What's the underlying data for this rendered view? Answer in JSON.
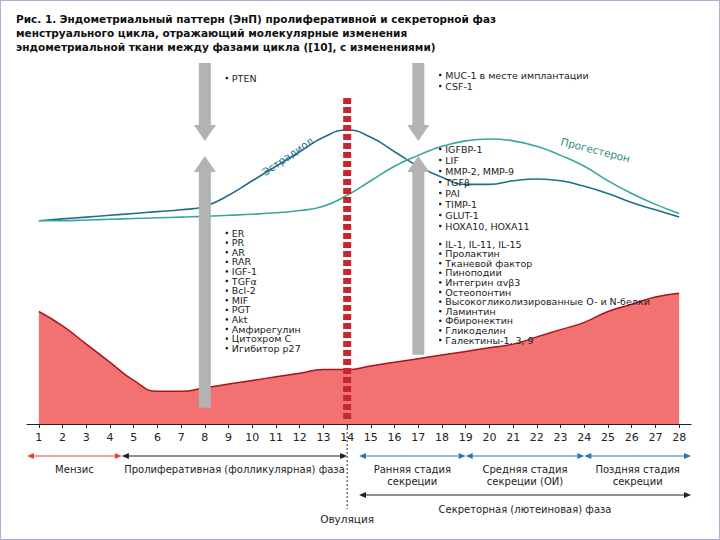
{
  "chart_data": {
    "type": "line",
    "title": "Рис. 1. Эндометриальный паттерн (ЭнП) пролиферативной и секреторной фаз менструального цикла, отражающий молекулярные изменения эндометриальной ткани между фазами цикла ([10], с изменениями)",
    "x": [
      1,
      2,
      3,
      4,
      5,
      6,
      7,
      8,
      9,
      10,
      11,
      12,
      13,
      14,
      15,
      16,
      17,
      18,
      19,
      20,
      21,
      22,
      23,
      24,
      25,
      26,
      27,
      28
    ],
    "xlim": [
      0.5,
      28.5
    ],
    "xticks": [
      1,
      2,
      3,
      4,
      5,
      6,
      7,
      8,
      9,
      10,
      11,
      12,
      13,
      14,
      15,
      16,
      17,
      18,
      19,
      20,
      21,
      22,
      23,
      24,
      25,
      26,
      27,
      28
    ],
    "ylim": [
      0,
      100
    ],
    "tick_labels": "x",
    "grid": false,
    "series": [
      {
        "name": "Эстрадиол",
        "color": "#1f6f8b",
        "values": [
          56,
          56.5,
          57,
          57.5,
          58,
          58.5,
          59,
          60,
          63,
          67,
          71,
          75,
          79,
          81,
          79,
          75,
          71,
          68,
          66,
          66,
          67,
          67.5,
          67,
          65.5,
          63.5,
          61,
          59,
          57
        ]
      },
      {
        "name": "Прогестерон",
        "color": "#3aa79a",
        "values": [
          56,
          56,
          56.2,
          56.4,
          56.6,
          56.8,
          57,
          57.2,
          57.5,
          57.8,
          58.2,
          58.8,
          60,
          63,
          67,
          71,
          74,
          76.5,
          78,
          78.5,
          78,
          76.5,
          74,
          71,
          67,
          63.5,
          60.5,
          58
        ]
      },
      {
        "type": "area",
        "color": "#f27272",
        "values": [
          31,
          27,
          22,
          17,
          12,
          9,
          9,
          10,
          11,
          12,
          13,
          14,
          15,
          15,
          16,
          17,
          18,
          19,
          20,
          21,
          22,
          24,
          26,
          28,
          31,
          33,
          35,
          36
        ]
      }
    ],
    "annotations": [
      {
        "x": 8,
        "groups": [
          [
            "PTEN"
          ],
          [
            "ER",
            "PR",
            "AR",
            "RAR",
            "IGF-1",
            "TGFα",
            "Bcl-2",
            "MIF",
            "PGT",
            "Akt",
            "Амфирегулин",
            "Цитохром С",
            "Игибитор p27"
          ]
        ]
      },
      {
        "x": 17,
        "groups": [
          [
            "MUC-1 в месте имплантации",
            "CSF-1"
          ],
          [
            "IGFBP-1",
            "LIF",
            "MMP-2, MMP-9",
            "TGFβ",
            "PAI",
            "TIMP-1",
            "GLUT-1",
            "HOXA10, HOXA11"
          ],
          [
            "IL-1, IL-11, IL-15",
            "Пролактин",
            "Тканевой фактор",
            "Пиноподии",
            "Интегрин αvβ3",
            "Остеопонтин",
            "Высокогликолизированные O- и N-белки",
            "Ламинтин",
            "Фбиронектин",
            "Гликоделин",
            "Галектины-1, 3, 9"
          ]
        ]
      }
    ],
    "ovulation": {
      "x": 14,
      "label": "Овуляция"
    },
    "phases": [
      {
        "label": "Мензис",
        "start": 0.5,
        "end": 4.5,
        "color": "#e8463c"
      },
      {
        "label": "Пролиферативная (фолликулярная) фаза",
        "start": 4.5,
        "end": 14,
        "color": "#222222"
      },
      {
        "label": "Ранняя стадия\nсекреции",
        "start": 14.5,
        "end": 19,
        "color": "#2a7ab0"
      },
      {
        "label": "Средняя стадия\nсекреции (ОИ)",
        "start": 19,
        "end": 24,
        "color": "#2a7ab0"
      },
      {
        "label": "Поздняя стадия\nсекреции",
        "start": 24,
        "end": 28.5,
        "color": "#2a7ab0"
      }
    ],
    "phase_total": {
      "label": "Секреторная (лютеиновая) фаза",
      "start": 14.5,
      "end": 28.5,
      "color": "#222222"
    }
  }
}
